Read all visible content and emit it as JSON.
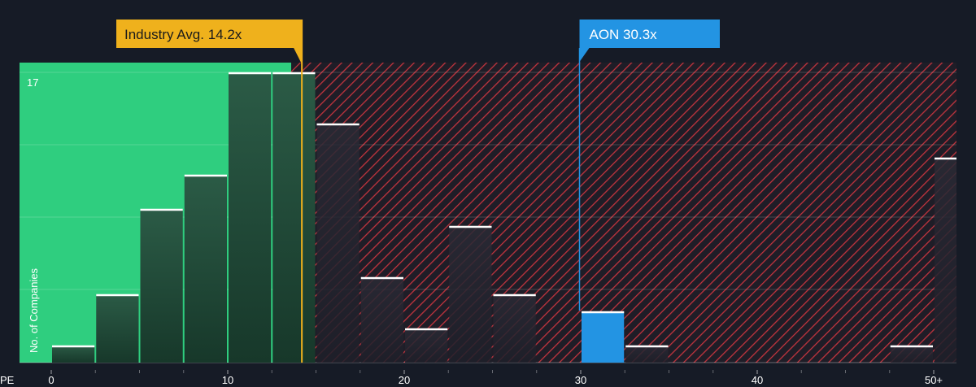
{
  "chart_data": {
    "type": "bar",
    "xlabel": "PE",
    "ylabel": "No. of Companies",
    "x_tick_labels": [
      "0",
      "10",
      "20",
      "30",
      "40",
      "50+"
    ],
    "x_tick_values": [
      0,
      10,
      20,
      30,
      40,
      50
    ],
    "xlim": [
      0,
      50.5
    ],
    "ylim": [
      0,
      17
    ],
    "y_tick_labels": [
      "17"
    ],
    "bin_width": 2.5,
    "bins": [
      {
        "start": 0.0,
        "end": 2.5,
        "value": 1
      },
      {
        "start": 2.5,
        "end": 5.0,
        "value": 4
      },
      {
        "start": 5.0,
        "end": 7.5,
        "value": 9
      },
      {
        "start": 7.5,
        "end": 10.0,
        "value": 11
      },
      {
        "start": 10.0,
        "end": 12.5,
        "value": 17
      },
      {
        "start": 12.5,
        "end": 15.0,
        "value": 17
      },
      {
        "start": 15.0,
        "end": 17.5,
        "value": 14
      },
      {
        "start": 17.5,
        "end": 20.0,
        "value": 5
      },
      {
        "start": 20.0,
        "end": 22.5,
        "value": 2
      },
      {
        "start": 22.5,
        "end": 25.0,
        "value": 8
      },
      {
        "start": 25.0,
        "end": 27.5,
        "value": 4
      },
      {
        "start": 30.0,
        "end": 32.5,
        "value": 3,
        "highlight": true
      },
      {
        "start": 32.5,
        "end": 35.0,
        "value": 1
      },
      {
        "start": 47.5,
        "end": 50.0,
        "value": 1
      },
      {
        "start": 50.0,
        "end": 52.5,
        "value": 12
      }
    ],
    "industry_avg": {
      "label": "Industry Avg. 14.2x",
      "value": 14.2
    },
    "company": {
      "label": "AON 30.3x",
      "value": 30.3
    },
    "colors": {
      "background": "#161b26",
      "below_avg_zone": "#2fce7f",
      "above_avg_zone_hatch": "#c1343e",
      "bar_dark": "#1b4433",
      "bar_light": "#2b5b46",
      "bar_top": "#ffffff",
      "highlight_bar": "#2394e3",
      "industry_label_bg": "#efb11c",
      "company_label_bg": "#2394e3",
      "text": "#ffffff",
      "grid": "#ffffff"
    }
  }
}
